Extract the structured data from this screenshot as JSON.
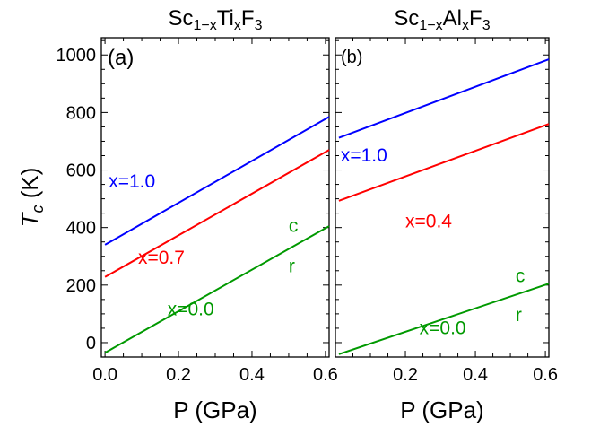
{
  "chart_data": [
    {
      "type": "line",
      "panel_label": "(a)",
      "title": {
        "base": "Sc",
        "sub1": "1−x",
        "mid": "Ti",
        "sub2": "x",
        "end": "F",
        "sub3": "3"
      },
      "xlabel": "P (GPa)",
      "ylabel": {
        "main": "T",
        "sub": "c",
        "unit": " (K)"
      },
      "xlim": [
        -0.01,
        0.61
      ],
      "ylim": [
        -50,
        1060
      ],
      "xticks": [
        0.0,
        0.2,
        0.4,
        0.6
      ],
      "xtick_labels": [
        "0.0",
        "0.2",
        "0.4",
        "0.6"
      ],
      "yticks": [
        0,
        200,
        400,
        600,
        800,
        1000
      ],
      "ytick_labels": [
        "0",
        "200",
        "400",
        "600",
        "800",
        "1000"
      ],
      "series": [
        {
          "name": "x=1.0",
          "color": "#0000ff",
          "x": [
            0.0,
            0.61
          ],
          "values": [
            340,
            785
          ]
        },
        {
          "name": "x=0.7",
          "color": "#ff0000",
          "x": [
            0.0,
            0.61
          ],
          "values": [
            228,
            670
          ]
        },
        {
          "name": "x=0.0",
          "color": "#009900",
          "x": [
            0.0,
            0.61
          ],
          "values": [
            -35,
            405
          ]
        }
      ],
      "annotations": [
        {
          "text": "x=1.0",
          "color": "#0000ff",
          "x": 0.01,
          "y": 540
        },
        {
          "text": "x=0.7",
          "color": "#ff0000",
          "x": 0.09,
          "y": 275
        },
        {
          "text": "x=0.0",
          "color": "#009900",
          "x": 0.17,
          "y": 95
        },
        {
          "text": "c",
          "color": "#009900",
          "x": 0.5,
          "y": 385
        },
        {
          "text": "r",
          "color": "#009900",
          "x": 0.5,
          "y": 245
        }
      ],
      "grid": false
    },
    {
      "type": "line",
      "panel_label": "(b)",
      "title": {
        "base": "Sc",
        "sub1": "1−x",
        "mid": "Al",
        "sub2": "x",
        "end": "F",
        "sub3": "3"
      },
      "xlabel": "P (GPa)",
      "xlim": [
        0.0,
        0.61
      ],
      "ylim": [
        -50,
        1060
      ],
      "xticks": [
        0.2,
        0.4,
        0.6
      ],
      "xtick_labels": [
        "0.2",
        "0.4",
        "0.6"
      ],
      "yticks": [
        0,
        200,
        400,
        600,
        800,
        1000
      ],
      "series": [
        {
          "name": "x=1.0",
          "color": "#0000ff",
          "x": [
            0.01,
            0.61
          ],
          "values": [
            712,
            985
          ]
        },
        {
          "name": "x=0.4",
          "color": "#ff0000",
          "x": [
            0.01,
            0.61
          ],
          "values": [
            493,
            760
          ]
        },
        {
          "name": "x=0.0",
          "color": "#009900",
          "x": [
            0.01,
            0.61
          ],
          "values": [
            -40,
            205
          ]
        }
      ],
      "annotations": [
        {
          "text": "x=1.0",
          "color": "#0000ff",
          "x": 0.015,
          "y": 630
        },
        {
          "text": "x=0.4",
          "color": "#ff0000",
          "x": 0.2,
          "y": 400
        },
        {
          "text": "x=0.0",
          "color": "#009900",
          "x": 0.24,
          "y": 30
        },
        {
          "text": "c",
          "color": "#009900",
          "x": 0.515,
          "y": 210
        },
        {
          "text": "r",
          "color": "#009900",
          "x": 0.515,
          "y": 75
        }
      ],
      "grid": false
    }
  ]
}
